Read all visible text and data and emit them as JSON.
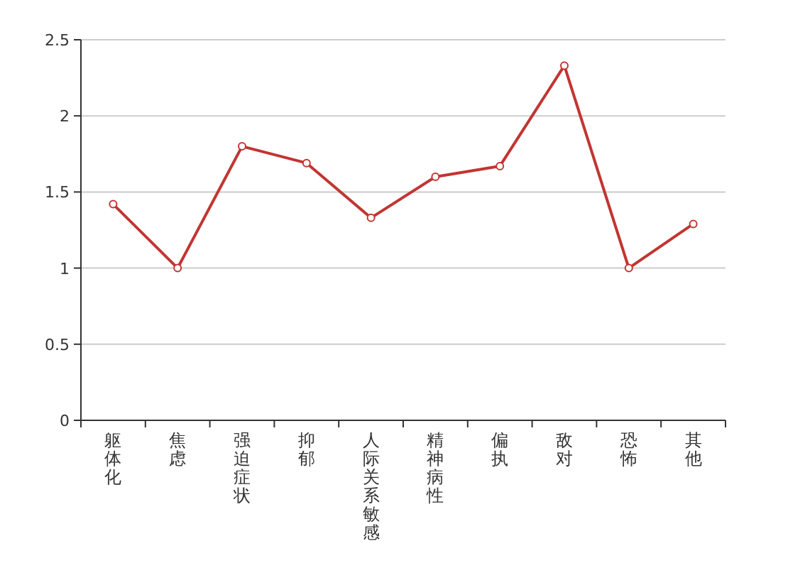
{
  "chart_data": {
    "type": "line",
    "categories": [
      "躯体化",
      "焦虑",
      "强迫症状",
      "抑郁",
      "人际关系敏感",
      "精神病性",
      "偏执",
      "敌对",
      "恐怖",
      "其他"
    ],
    "series": [
      {
        "color": "#c23531",
        "values": [
          1.42,
          1.0,
          1.8,
          1.69,
          1.33,
          1.6,
          1.67,
          2.33,
          1.0,
          1.29
        ]
      }
    ],
    "ylim": [
      0,
      2.5
    ],
    "yticks": [
      0,
      0.5,
      1,
      1.5,
      2,
      2.5
    ],
    "grid": "y",
    "marker": "circle",
    "line_style": "solid"
  }
}
